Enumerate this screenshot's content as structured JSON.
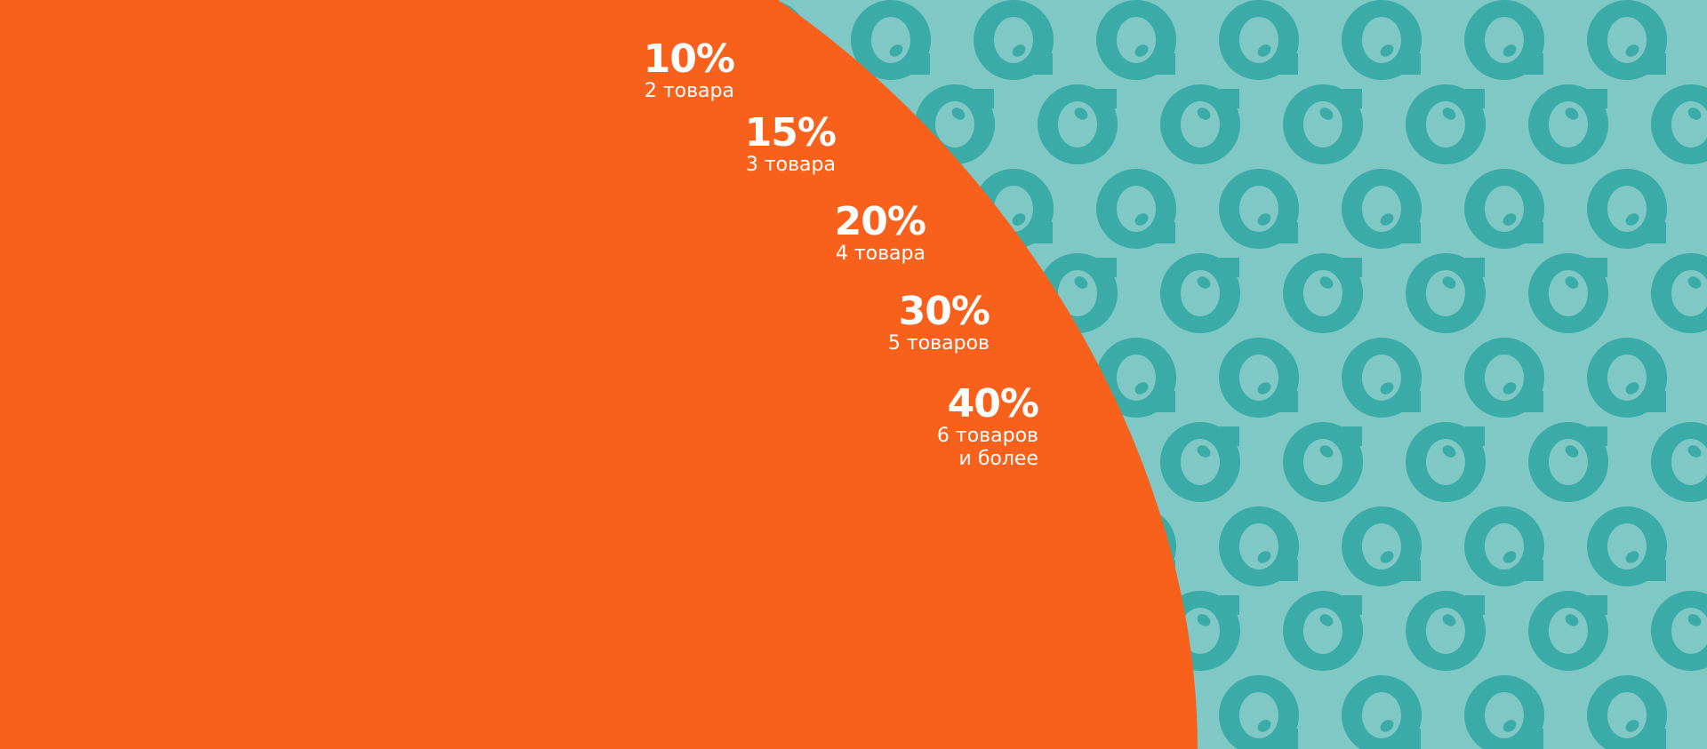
{
  "colors": {
    "orange": "#F8611C",
    "teal_background": "#80C8C6",
    "teal_pattern": "#3AABA6",
    "text": "#FFFFFF"
  },
  "pattern_icon": "ring-with-dot-icon",
  "tiers": [
    {
      "percent": "10%",
      "label": "2 товара"
    },
    {
      "percent": "15%",
      "label": "3 товара"
    },
    {
      "percent": "20%",
      "label": "4 товара"
    },
    {
      "percent": "30%",
      "label": "5 товаров"
    },
    {
      "percent": "40%",
      "label": "6 товаров",
      "label2": "и более"
    }
  ]
}
